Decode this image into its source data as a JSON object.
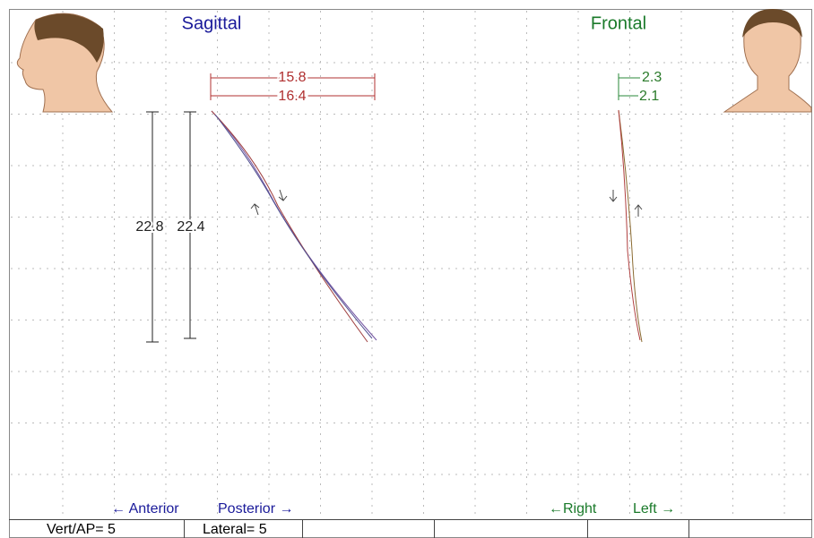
{
  "views": {
    "sagittal": {
      "title": "Sagittal",
      "widths": [
        "15.8",
        "16.4"
      ],
      "heights": [
        "22.8",
        "22.4"
      ],
      "left_label": "← Anterior",
      "right_label": "Posterior →"
    },
    "frontal": {
      "title": "Frontal",
      "widths": [
        "2.3",
        "2.1"
      ],
      "left_label": "←Right",
      "right_label": "Left →"
    }
  },
  "status_bar": [
    "Vert/AP= 5",
    "Lateral= 5"
  ]
}
